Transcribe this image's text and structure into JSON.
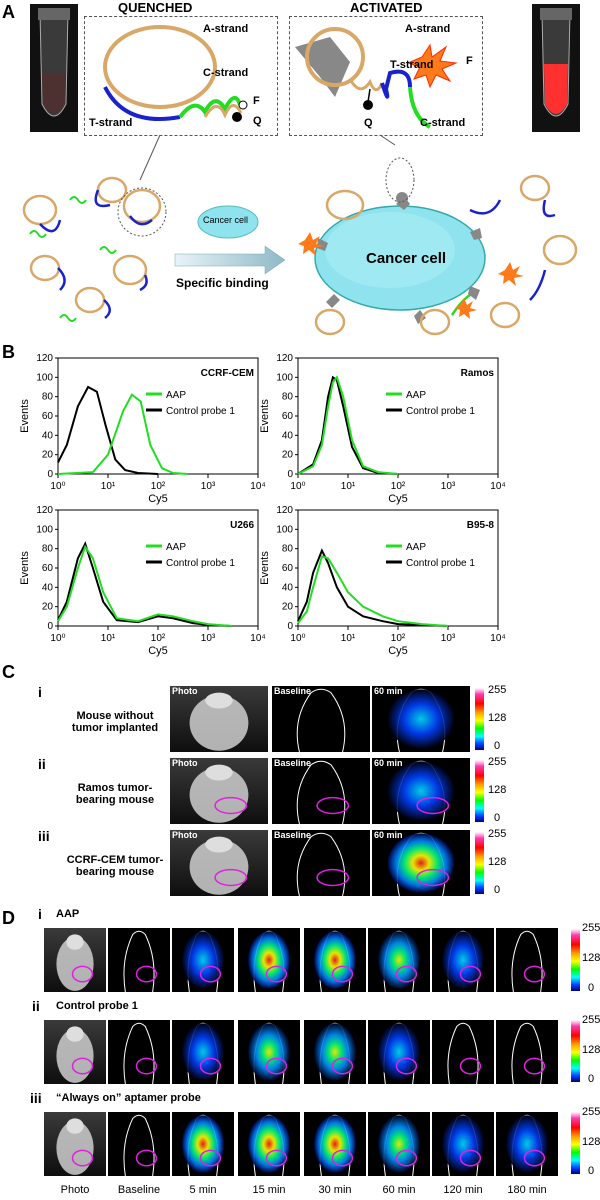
{
  "panels": {
    "A": "A",
    "B": "B",
    "C": "C",
    "D": "D"
  },
  "panelA": {
    "quenched_title": "QUENCHED",
    "activated_title": "ACTIVATED",
    "a_strand": "A-strand",
    "c_strand": "C-strand",
    "t_strand": "T-strand",
    "f": "F",
    "q": "Q",
    "cancer_cell_small": "Cancer cell",
    "specific_binding": "Specific binding",
    "cancer_cell_large": "Cancer cell"
  },
  "panelB": {
    "ylabel": "Events",
    "xlabel": "Cy5",
    "legend_aap": "AAP",
    "legend_control": "Control probe 1",
    "charts": [
      "CCRF-CEM",
      "Ramos",
      "U266",
      "B95-8"
    ],
    "y_ticks": [
      "0",
      "20",
      "40",
      "60",
      "80",
      "100",
      "120"
    ],
    "x_ticks": [
      "10⁰",
      "10¹",
      "10²",
      "10³",
      "10⁴"
    ]
  },
  "chart_data": [
    {
      "type": "line",
      "title": "CCRF-CEM",
      "xlabel": "Cy5",
      "ylabel": "Events",
      "x_scale": "log",
      "xlim": [
        1,
        10000
      ],
      "ylim": [
        0,
        120
      ],
      "legend": "right",
      "series": [
        {
          "name": "AAP",
          "color": "#22dd22",
          "x": [
            1,
            5,
            10,
            20,
            30,
            45,
            70,
            120,
            200,
            400
          ],
          "y": [
            0,
            2,
            20,
            65,
            82,
            75,
            30,
            6,
            1,
            0
          ]
        },
        {
          "name": "Control probe 1",
          "color": "#000000",
          "x": [
            1,
            1.5,
            2.5,
            4,
            6,
            9,
            14,
            22,
            40,
            100
          ],
          "y": [
            12,
            30,
            70,
            90,
            85,
            50,
            15,
            4,
            1,
            0
          ]
        }
      ]
    },
    {
      "type": "line",
      "title": "Ramos",
      "xlabel": "Cy5",
      "ylabel": "Events",
      "x_scale": "log",
      "xlim": [
        1,
        10000
      ],
      "ylim": [
        0,
        120
      ],
      "legend": "right",
      "series": [
        {
          "name": "AAP",
          "color": "#22dd22",
          "x": [
            1,
            2,
            3,
            4,
            5,
            6,
            8,
            12,
            20,
            40,
            100
          ],
          "y": [
            0,
            8,
            30,
            70,
            95,
            100,
            80,
            35,
            8,
            2,
            0
          ]
        },
        {
          "name": "Control probe 1",
          "color": "#000000",
          "x": [
            1,
            2,
            3,
            4,
            5,
            6,
            8,
            12,
            20,
            40,
            100
          ],
          "y": [
            0,
            10,
            35,
            80,
            100,
            97,
            70,
            28,
            6,
            1,
            0
          ]
        }
      ]
    },
    {
      "type": "line",
      "title": "U266",
      "xlabel": "Cy5",
      "ylabel": "Events",
      "x_scale": "log",
      "xlim": [
        1,
        10000
      ],
      "ylim": [
        0,
        120
      ],
      "legend": "right",
      "series": [
        {
          "name": "AAP",
          "color": "#22dd22",
          "x": [
            1,
            1.5,
            2.5,
            3.5,
            5,
            8,
            15,
            40,
            100,
            200,
            500,
            1000,
            3000
          ],
          "y": [
            5,
            20,
            60,
            82,
            70,
            35,
            8,
            5,
            12,
            10,
            5,
            2,
            0
          ]
        },
        {
          "name": "Control probe 1",
          "color": "#000000",
          "x": [
            1,
            1.5,
            2.5,
            3.5,
            5,
            8,
            15,
            40,
            100,
            200,
            500,
            1000,
            3000
          ],
          "y": [
            6,
            25,
            70,
            85,
            60,
            25,
            6,
            4,
            10,
            8,
            3,
            1,
            0
          ]
        }
      ]
    },
    {
      "type": "line",
      "title": "B95-8",
      "xlabel": "Cy5",
      "ylabel": "Events",
      "x_scale": "log",
      "xlim": [
        1,
        10000
      ],
      "ylim": [
        0,
        120
      ],
      "legend": "right",
      "series": [
        {
          "name": "AAP",
          "color": "#22dd22",
          "x": [
            1,
            1.5,
            2,
            3,
            4,
            6,
            10,
            20,
            50,
            100,
            300,
            1000
          ],
          "y": [
            3,
            15,
            40,
            72,
            70,
            55,
            35,
            20,
            10,
            5,
            2,
            0
          ]
        },
        {
          "name": "Control probe 1",
          "color": "#000000",
          "x": [
            1,
            1.5,
            2,
            3,
            4,
            6,
            10,
            20,
            50,
            100,
            300,
            1000
          ],
          "y": [
            5,
            25,
            55,
            78,
            65,
            40,
            20,
            10,
            5,
            2,
            1,
            0
          ]
        }
      ]
    }
  ],
  "panelC": {
    "rows": [
      {
        "roman": "i",
        "label1": "Mouse without",
        "label2": "tumor implanted"
      },
      {
        "roman": "ii",
        "label1": "Ramos tumor-",
        "label2": "bearing mouse"
      },
      {
        "roman": "iii",
        "label1": "CCRF-CEM tumor-",
        "label2": "bearing mouse"
      }
    ],
    "tile_labels": [
      "Photo",
      "Baseline",
      "60 min"
    ],
    "cb_max": "255",
    "cb_mid": "128",
    "cb_min": "0"
  },
  "panelD": {
    "rows": [
      {
        "roman": "i",
        "label": "AAP"
      },
      {
        "roman": "ii",
        "label": "Control probe 1"
      },
      {
        "roman": "iii",
        "label": "“Always on” aptamer probe"
      }
    ],
    "col_labels": [
      "Photo",
      "Baseline",
      "5 min",
      "15 min",
      "30 min",
      "60 min",
      "120 min",
      "180 min"
    ],
    "cb_max": "255",
    "cb_mid": "128",
    "cb_min": "0"
  },
  "colors": {
    "orange_strand": "#d9a868",
    "blue_strand": "#1a22cc",
    "green_strand": "#22dd22",
    "cell_cyan": "#8fe3ef",
    "receptor_gray": "#888888",
    "flare_orange": "#ff7a1a",
    "magenta_circle": "#e020e0"
  }
}
